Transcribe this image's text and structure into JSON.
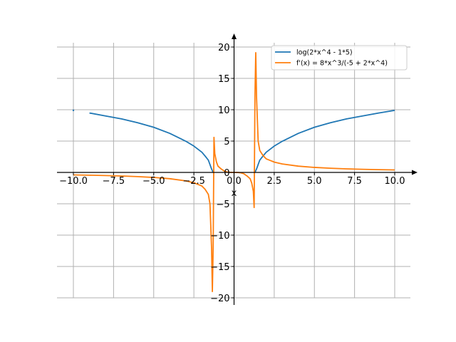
{
  "chart_data": {
    "type": "line",
    "title": "",
    "xlabel": "x",
    "ylabel": "",
    "xlim": [
      -11.0,
      11.0
    ],
    "ylim": [
      -21.0,
      22.0
    ],
    "grid": true,
    "legend_position": "top-right",
    "x_ticks": [
      -10.0,
      -7.5,
      -5.0,
      -2.5,
      0.0,
      2.5,
      5.0,
      7.5,
      10.0
    ],
    "x_tick_labels": [
      "−10.0",
      "−7.5",
      "−5.0",
      "−2.5",
      "0.0",
      "2.5",
      "5.0",
      "7.5",
      "10.0"
    ],
    "y_ticks": [
      -20,
      -15,
      -10,
      -5,
      0,
      5,
      10,
      15,
      20
    ],
    "y_tick_labels": [
      "−20",
      "−15",
      "−10",
      "−5",
      "0",
      "5",
      "10",
      "15",
      "20"
    ],
    "series": [
      {
        "name": "log(2*x^4 - 1*5)",
        "color": "#1f77b4",
        "segments": [
          [
            [
              -10,
              9.9
            ]
          ],
          [
            [
              -9,
              9.48
            ],
            [
              -8,
              9.01
            ],
            [
              -7,
              8.54
            ],
            [
              -6,
              7.92
            ],
            [
              -5,
              7.2
            ],
            [
              -4,
              6.23
            ],
            [
              -3,
              4.97
            ],
            [
              -2.5,
              4.2
            ],
            [
              -2,
              3.22
            ],
            [
              -1.8,
              2.61
            ],
            [
              -1.6,
              1.96
            ],
            [
              -1.5,
              1.26
            ],
            [
              -1.4,
              0.55
            ],
            [
              -1.3,
              0.0
            ]
          ],
          [
            [
              1.3,
              0.0
            ],
            [
              1.4,
              0.55
            ],
            [
              1.5,
              1.26
            ],
            [
              1.6,
              1.96
            ],
            [
              1.8,
              2.61
            ],
            [
              2,
              3.22
            ],
            [
              2.5,
              4.2
            ],
            [
              3,
              4.97
            ],
            [
              4,
              6.23
            ],
            [
              5,
              7.2
            ],
            [
              6,
              7.92
            ],
            [
              7,
              8.54
            ],
            [
              8,
              9.01
            ],
            [
              9,
              9.48
            ],
            [
              10,
              9.9
            ]
          ]
        ]
      },
      {
        "name": "f'(x) = 8*x^3/(-5 + 2*x^4)",
        "color": "#ff7f0e",
        "segments": [
          [
            [
              -10,
              -0.4
            ],
            [
              -9,
              -0.44
            ],
            [
              -8,
              -0.5
            ],
            [
              -7,
              -0.57
            ],
            [
              -6,
              -0.67
            ],
            [
              -5,
              -0.8
            ],
            [
              -4,
              -1.0
            ],
            [
              -3,
              -1.35
            ],
            [
              -2.5,
              -1.65
            ],
            [
              -2,
              -2.17
            ],
            [
              -1.8,
              -2.7
            ],
            [
              -1.6,
              -3.5
            ],
            [
              -1.5,
              -5.0
            ],
            [
              -1.4,
              -12.0
            ],
            [
              -1.35,
              -19.0
            ],
            [
              -1.3,
              -12.0
            ],
            [
              -1.25,
              5.6
            ],
            [
              -1.2,
              3.0
            ],
            [
              -1.1,
              1.7
            ],
            [
              -1.0,
              1.0
            ],
            [
              -0.8,
              0.55
            ],
            [
              -0.6,
              0.2
            ],
            [
              -0.4,
              0.05
            ],
            [
              -0.2,
              0.005
            ],
            [
              0,
              0
            ]
          ],
          [
            [
              0,
              0
            ],
            [
              0.2,
              -0.005
            ],
            [
              0.4,
              -0.05
            ],
            [
              0.6,
              -0.2
            ],
            [
              0.8,
              -0.55
            ],
            [
              1.0,
              -1.0
            ],
            [
              1.1,
              -1.7
            ],
            [
              1.2,
              -3.0
            ],
            [
              1.25,
              -5.6
            ],
            [
              1.3,
              12.0
            ],
            [
              1.35,
              19.1
            ],
            [
              1.4,
              12.0
            ],
            [
              1.5,
              5.0
            ],
            [
              1.6,
              3.5
            ],
            [
              1.8,
              2.7
            ],
            [
              2,
              2.17
            ],
            [
              2.5,
              1.65
            ],
            [
              3,
              1.35
            ],
            [
              4,
              1.0
            ],
            [
              5,
              0.8
            ],
            [
              6,
              0.67
            ],
            [
              7,
              0.57
            ],
            [
              8,
              0.5
            ],
            [
              9,
              0.44
            ],
            [
              10,
              0.4
            ]
          ]
        ]
      }
    ]
  }
}
